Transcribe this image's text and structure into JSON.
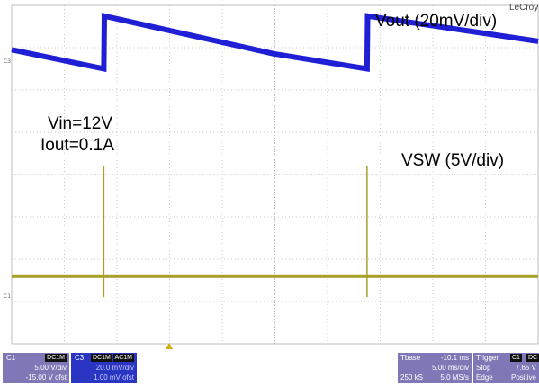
{
  "brand": "LeCroy",
  "annotations": {
    "vout_label": "Vout (20mV/div)",
    "vin_label": "Vin=12V",
    "iout_label": "Iout=0.1A",
    "vsw_label": "VSW (5V/div)"
  },
  "channel_markers": {
    "c3": "C3",
    "c1": "C1"
  },
  "colors": {
    "vout_trace": "#1f1fd6",
    "vsw_trace": "#a8a028",
    "grid": "#c8c8c8",
    "panel": "#7e78b6",
    "panel_c3": "#2a35c4"
  },
  "chart_data": {
    "type": "line",
    "title": "",
    "grid": {
      "divisions_x": 10,
      "divisions_y": 8
    },
    "series": [
      {
        "name": "Vout (20mV/div)",
        "x": [
          0,
          1.75,
          1.76,
          5.0,
          5.01,
          6.75,
          6.76,
          10.0
        ],
        "y": [
          6.95,
          6.5,
          7.75,
          6.85,
          6.85,
          6.5,
          7.75,
          7.15
        ],
        "units": {
          "x": "div",
          "y": "div"
        }
      },
      {
        "name": "VSW (5V/div)",
        "baseline_div": 1.6,
        "spike_x": [
          1.75,
          6.75
        ],
        "spike_peak_div": 4.2,
        "spike_min_div": 1.1,
        "units": {
          "x": "div",
          "y": "div"
        }
      }
    ]
  },
  "panels": {
    "c1": {
      "name": "C1",
      "coupling": "DC1M",
      "scale": "5.00 V/div",
      "offset": "-15.00 V ofst"
    },
    "c3": {
      "name": "C3",
      "coupling": "DC1M",
      "tag": "AC1M",
      "scale": "20.0 mV/div",
      "offset": "1.00 mV ofst"
    },
    "timebase": {
      "title": "Tbase",
      "delay": "-10.1 ms",
      "scale": "5.00 ms/div",
      "samples": "250 kS",
      "rate": "5.0 MS/s"
    },
    "trigger": {
      "title": "Trigger",
      "source": "C1",
      "coupling": "DC",
      "mode": "Stop",
      "level": "7.65 V",
      "type": "Edge",
      "slope": "Positive"
    }
  }
}
